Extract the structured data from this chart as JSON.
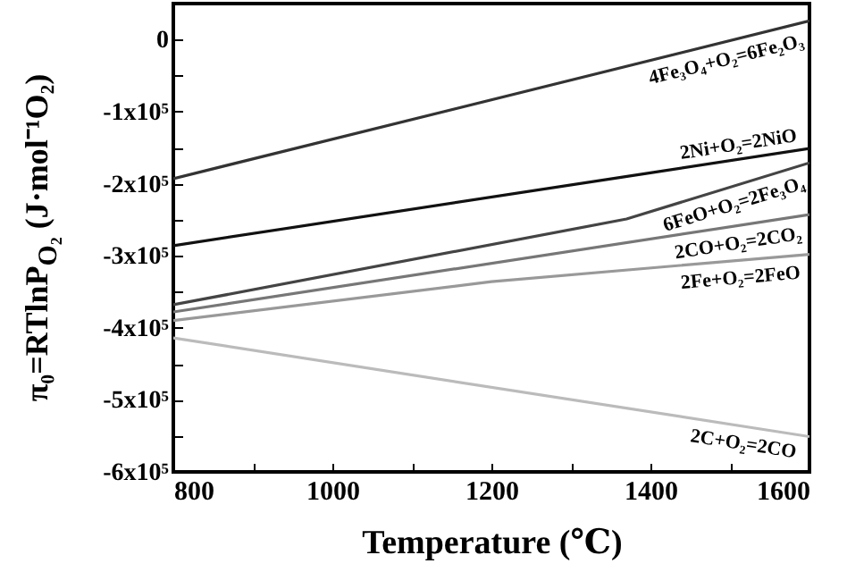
{
  "chart_data": {
    "type": "line",
    "xlabel": "Temperature (℃)",
    "ylabel": "π₀=RTlnP$_{O₂}$ (J·mol⁻¹O₂)",
    "xlim": [
      800,
      1600
    ],
    "ylim": [
      -600000,
      50000
    ],
    "xticks": [
      800,
      {
        "value": 900,
        "label": null
      },
      1000,
      {
        "value": 1100,
        "label": null
      },
      1200,
      {
        "value": 1300,
        "label": null
      },
      1400,
      {
        "value": 1500,
        "label": null
      },
      1600
    ],
    "yticks": [
      {
        "value": -600000,
        "label": "-6x10⁵"
      },
      {
        "value": -550000,
        "label": null
      },
      {
        "value": -500000,
        "label": "-5x10⁵"
      },
      {
        "value": -450000,
        "label": null
      },
      {
        "value": -400000,
        "label": "-4x10⁵"
      },
      {
        "value": -350000,
        "label": null
      },
      {
        "value": -300000,
        "label": "-3x10⁵"
      },
      {
        "value": -250000,
        "label": null
      },
      {
        "value": -200000,
        "label": "-2x10⁵"
      },
      {
        "value": -150000,
        "label": null
      },
      {
        "value": -100000,
        "label": "-1x10⁵"
      },
      {
        "value": -50000,
        "label": null
      },
      0
    ],
    "grid": false,
    "marker": "none",
    "line_style": "solid",
    "series": [
      {
        "name": "4Fe₃O₄+O₂=6Fe₂O₃",
        "color": "#333333",
        "x": [
          800,
          1600
        ],
        "values": [
          -193000,
          26000
        ]
      },
      {
        "name": "2Ni+O₂=2NiO",
        "color": "#111111",
        "x": [
          800,
          1400,
          1600
        ],
        "values": [
          -286000,
          -185000,
          -151000
        ]
      },
      {
        "name": "6FeO+O₂=2Fe₃O₄",
        "color": "#444444",
        "x": [
          800,
          1370,
          1600
        ],
        "values": [
          -368000,
          -249000,
          -171000
        ]
      },
      {
        "name": "2CO+O₂=2CO₂",
        "color": "#777777",
        "x": [
          800,
          1600
        ],
        "values": [
          -378000,
          -243000
        ]
      },
      {
        "name": "2Fe+O₂=2FeO",
        "color": "#999999",
        "x": [
          800,
          1200,
          1600
        ],
        "values": [
          -390000,
          -336000,
          -298000
        ]
      },
      {
        "name": "2C+O₂=2CO",
        "color": "#bbbbbb",
        "x": [
          800,
          1600
        ],
        "values": [
          -414000,
          -551000
        ]
      }
    ]
  }
}
